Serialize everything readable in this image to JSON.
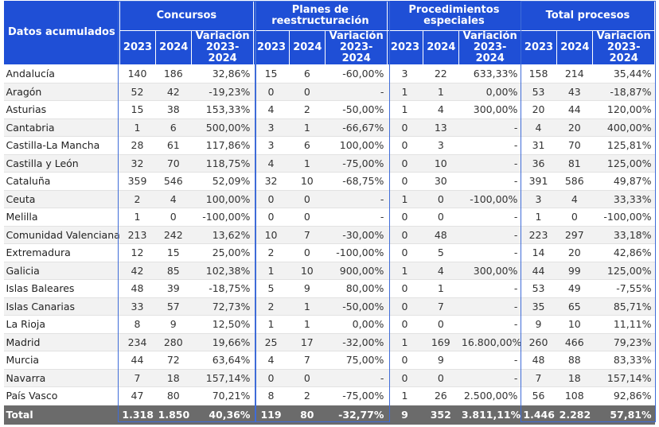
{
  "header": {
    "row_header": "Datos acumulados",
    "groups": [
      "Concursos",
      "Planes de reestructuración",
      "Procedimientos especiales",
      "Total procesos"
    ],
    "subcolumns": [
      "2023",
      "2024",
      "Variación 2023-2024"
    ]
  },
  "rows": [
    {
      "region": "Andalucía",
      "cells": [
        "140",
        "186",
        "32,86%",
        "15",
        "6",
        "-60,00%",
        "3",
        "22",
        "633,33%",
        "158",
        "214",
        "35,44%"
      ]
    },
    {
      "region": "Aragón",
      "cells": [
        "52",
        "42",
        "-19,23%",
        "0",
        "0",
        "-",
        "1",
        "1",
        "0,00%",
        "53",
        "43",
        "-18,87%"
      ]
    },
    {
      "region": "Asturias",
      "cells": [
        "15",
        "38",
        "153,33%",
        "4",
        "2",
        "-50,00%",
        "1",
        "4",
        "300,00%",
        "20",
        "44",
        "120,00%"
      ]
    },
    {
      "region": "Cantabria",
      "cells": [
        "1",
        "6",
        "500,00%",
        "3",
        "1",
        "-66,67%",
        "0",
        "13",
        "-",
        "4",
        "20",
        "400,00%"
      ]
    },
    {
      "region": "Castilla-La Mancha",
      "cells": [
        "28",
        "61",
        "117,86%",
        "3",
        "6",
        "100,00%",
        "0",
        "3",
        "-",
        "31",
        "70",
        "125,81%"
      ]
    },
    {
      "region": "Castilla y León",
      "cells": [
        "32",
        "70",
        "118,75%",
        "4",
        "1",
        "-75,00%",
        "0",
        "10",
        "-",
        "36",
        "81",
        "125,00%"
      ]
    },
    {
      "region": "Cataluña",
      "cells": [
        "359",
        "546",
        "52,09%",
        "32",
        "10",
        "-68,75%",
        "0",
        "30",
        "-",
        "391",
        "586",
        "49,87%"
      ]
    },
    {
      "region": "Ceuta",
      "cells": [
        "2",
        "4",
        "100,00%",
        "0",
        "0",
        "-",
        "1",
        "0",
        "-100,00%",
        "3",
        "4",
        "33,33%"
      ]
    },
    {
      "region": "Melilla",
      "cells": [
        "1",
        "0",
        "-100,00%",
        "0",
        "0",
        "-",
        "0",
        "0",
        "-",
        "1",
        "0",
        "-100,00%"
      ]
    },
    {
      "region": "Comunidad Valenciana",
      "cells": [
        "213",
        "242",
        "13,62%",
        "10",
        "7",
        "-30,00%",
        "0",
        "48",
        "-",
        "223",
        "297",
        "33,18%"
      ]
    },
    {
      "region": "Extremadura",
      "cells": [
        "12",
        "15",
        "25,00%",
        "2",
        "0",
        "-100,00%",
        "0",
        "5",
        "-",
        "14",
        "20",
        "42,86%"
      ]
    },
    {
      "region": "Galicia",
      "cells": [
        "42",
        "85",
        "102,38%",
        "1",
        "10",
        "900,00%",
        "1",
        "4",
        "300,00%",
        "44",
        "99",
        "125,00%"
      ]
    },
    {
      "region": "Islas Baleares",
      "cells": [
        "48",
        "39",
        "-18,75%",
        "5",
        "9",
        "80,00%",
        "0",
        "1",
        "-",
        "53",
        "49",
        "-7,55%"
      ]
    },
    {
      "region": "Islas Canarias",
      "cells": [
        "33",
        "57",
        "72,73%",
        "2",
        "1",
        "-50,00%",
        "0",
        "7",
        "-",
        "35",
        "65",
        "85,71%"
      ]
    },
    {
      "region": "La Rioja",
      "cells": [
        "8",
        "9",
        "12,50%",
        "1",
        "1",
        "0,00%",
        "0",
        "0",
        "-",
        "9",
        "10",
        "11,11%"
      ]
    },
    {
      "region": "Madrid",
      "cells": [
        "234",
        "280",
        "19,66%",
        "25",
        "17",
        "-32,00%",
        "1",
        "169",
        "16.800,00%",
        "260",
        "466",
        "79,23%"
      ]
    },
    {
      "region": "Murcia",
      "cells": [
        "44",
        "72",
        "63,64%",
        "4",
        "7",
        "75,00%",
        "0",
        "9",
        "-",
        "48",
        "88",
        "83,33%"
      ]
    },
    {
      "region": "Navarra",
      "cells": [
        "7",
        "18",
        "157,14%",
        "0",
        "0",
        "-",
        "0",
        "0",
        "-",
        "7",
        "18",
        "157,14%"
      ]
    },
    {
      "region": "País Vasco",
      "cells": [
        "47",
        "80",
        "70,21%",
        "8",
        "2",
        "-75,00%",
        "1",
        "26",
        "2.500,00%",
        "56",
        "108",
        "92,86%"
      ]
    }
  ],
  "total": {
    "region": "Total",
    "cells": [
      "1.318",
      "1.850",
      "40,36%",
      "119",
      "80",
      "-32,77%",
      "9",
      "352",
      "3.811,11%",
      "1.446",
      "2.282",
      "57,81%"
    ]
  },
  "colors": {
    "header_bg": "#1f4fd6",
    "total_bg": "#6b6b6b",
    "stripe": "#f2f2f2",
    "highlight_border": "#3f6cd8"
  }
}
